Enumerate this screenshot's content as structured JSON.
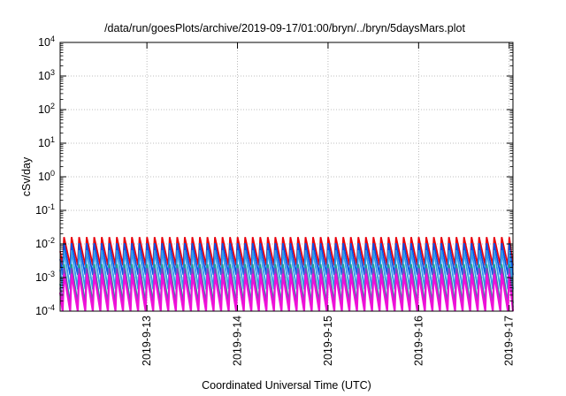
{
  "chart_data": {
    "type": "line",
    "title": "/data/run/goesPlots/archive/2019-09-17/01:00/bryn/../bryn/5daysMars.plot",
    "xlabel": "Coordinated Universal Time (UTC)",
    "ylabel": "cSv/day",
    "yscale": "log",
    "ylim": [
      0.0001,
      10000
    ],
    "y_ticks": [
      {
        "base": "10",
        "exp": "-4",
        "value": 0.0001
      },
      {
        "base": "10",
        "exp": "-3",
        "value": 0.001
      },
      {
        "base": "10",
        "exp": "-2",
        "value": 0.01
      },
      {
        "base": "10",
        "exp": "-1",
        "value": 0.1
      },
      {
        "base": "10",
        "exp": "0",
        "value": 1
      },
      {
        "base": "10",
        "exp": "1",
        "value": 10
      },
      {
        "base": "10",
        "exp": "2",
        "value": 100
      },
      {
        "base": "10",
        "exp": "3",
        "value": 1000
      },
      {
        "base": "10",
        "exp": "4",
        "value": 10000
      }
    ],
    "xlim": [
      "2019-09-12 01:00",
      "2019-09-17 01:00"
    ],
    "x_ticks": [
      {
        "label": "2019-9-13",
        "value": "2019-09-13 00:00"
      },
      {
        "label": "2019-9-14",
        "value": "2019-09-14 00:00"
      },
      {
        "label": "2019-9-15",
        "value": "2019-09-15 00:00"
      },
      {
        "label": "2019-9-16",
        "value": "2019-09-16 00:00"
      },
      {
        "label": "2019-9-17",
        "value": "2019-09-17 00:00"
      }
    ],
    "grid": true,
    "pattern": {
      "description": "sawtooth, one cycle every ~2 hours",
      "cycle_hours": 2
    },
    "series": [
      {
        "color": "#e8000b",
        "peak": 0.016,
        "trough": 0.0023
      },
      {
        "color": "#0a50e6",
        "peak": 0.0105,
        "trough": 0.0012
      },
      {
        "color": "#2f9cea",
        "peak": 0.0065,
        "trough": 0.00045
      },
      {
        "color": "#1e9e8e",
        "peak": 0.0025,
        "trough": 0.00017
      },
      {
        "color": "#8a3cc8",
        "peak": 0.0019,
        "trough": 0.00013
      },
      {
        "color": "#ee10d8",
        "peak": 0.0013,
        "trough": 0.0001
      }
    ]
  }
}
